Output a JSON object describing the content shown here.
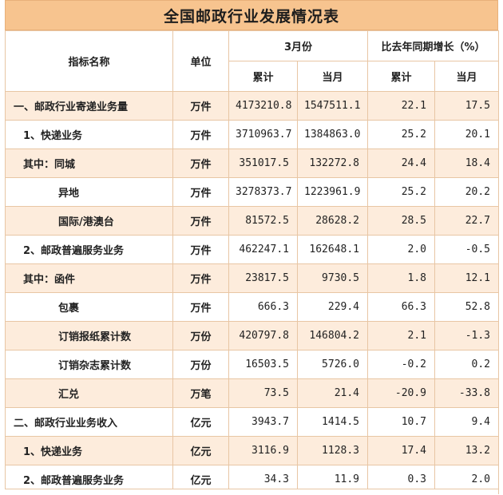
{
  "title": "全国邮政行业发展情况表",
  "header": {
    "indicator": "指标名称",
    "unit": "单位",
    "march": "3月份",
    "growth": "比去年同期增长（%）",
    "cumulative": "累计",
    "current_month": "当月",
    "growth_cumulative": "累计",
    "growth_current_month": "当月"
  },
  "rows": [
    {
      "name": "一、邮政行业寄递业务量",
      "unit": "万件",
      "cum": "4173210.8",
      "month": "1547511.1",
      "g_cum": "22.1",
      "g_month": "17.5"
    },
    {
      "name": "1、快递业务",
      "unit": "万件",
      "cum": "3710963.7",
      "month": "1384863.0",
      "g_cum": "25.2",
      "g_month": "20.1"
    },
    {
      "name": "其中：同城",
      "unit": "万件",
      "cum": "351017.5",
      "month": "132272.8",
      "g_cum": "24.4",
      "g_month": "18.4"
    },
    {
      "name": "异地",
      "unit": "万件",
      "cum": "3278373.7",
      "month": "1223961.9",
      "g_cum": "25.2",
      "g_month": "20.2"
    },
    {
      "name": "国际/港澳台",
      "unit": "万件",
      "cum": "81572.5",
      "month": "28628.2",
      "g_cum": "28.5",
      "g_month": "22.7"
    },
    {
      "name": "2、邮政普遍服务业务",
      "unit": "万件",
      "cum": "462247.1",
      "month": "162648.1",
      "g_cum": "2.0",
      "g_month": "-0.5"
    },
    {
      "name": "其中：函件",
      "unit": "万件",
      "cum": "23817.5",
      "month": "9730.5",
      "g_cum": "1.8",
      "g_month": "12.1"
    },
    {
      "name": "包裹",
      "unit": "万件",
      "cum": "666.3",
      "month": "229.4",
      "g_cum": "66.3",
      "g_month": "52.8"
    },
    {
      "name": "订销报纸累计数",
      "unit": "万份",
      "cum": "420797.8",
      "month": "146804.2",
      "g_cum": "2.1",
      "g_month": "-1.3"
    },
    {
      "name": "订销杂志累计数",
      "unit": "万份",
      "cum": "16503.5",
      "month": "5726.0",
      "g_cum": "-0.2",
      "g_month": "0.2"
    },
    {
      "name": "汇兑",
      "unit": "万笔",
      "cum": "73.5",
      "month": "21.4",
      "g_cum": "-20.9",
      "g_month": "-33.8"
    },
    {
      "name": "二、邮政行业业务收入",
      "unit": "亿元",
      "cum": "3943.7",
      "month": "1414.5",
      "g_cum": "10.7",
      "g_month": "9.4"
    },
    {
      "name": "1、快递业务",
      "unit": "亿元",
      "cum": "3116.9",
      "month": "1128.3",
      "g_cum": "17.4",
      "g_month": "13.2"
    },
    {
      "name": "2、邮政普遍服务业务",
      "unit": "亿元",
      "cum": "34.3",
      "month": "11.9",
      "g_cum": "0.3",
      "g_month": "2.0"
    }
  ]
}
